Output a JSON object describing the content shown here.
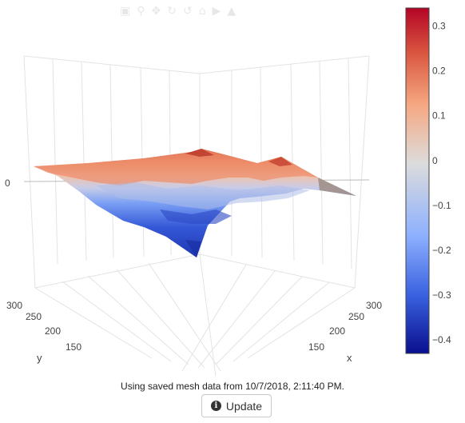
{
  "chart_data": {
    "type": "surface",
    "title": "",
    "x_axis": {
      "label": "x",
      "ticks": [
        "150",
        "200",
        "250",
        "300"
      ]
    },
    "y_axis": {
      "label": "y",
      "ticks": [
        "150",
        "200",
        "250",
        "300"
      ]
    },
    "z_axis": {
      "label": "",
      "ticks": [
        "0"
      ]
    },
    "colorbar": {
      "ticks": [
        "0.3",
        "0.2",
        "0.1",
        "0",
        "−0.1",
        "−0.2",
        "−0.3",
        "−0.4"
      ],
      "values": [
        0.3,
        0.2,
        0.1,
        0,
        -0.1,
        -0.2,
        -0.3,
        -0.4
      ],
      "range": [
        -0.43,
        0.34
      ],
      "colorscale": [
        "#0a0f8e",
        "#3a62e0",
        "#8db0fe",
        "#dcdcdc",
        "#f6a882",
        "#d9563f",
        "#b40426"
      ]
    },
    "surface_range": [
      -0.43,
      0.34
    ],
    "grid": true
  },
  "modebar_icons": [
    "camera-icon",
    "zoom-icon",
    "pan-icon",
    "orbit-icon",
    "turntable-icon",
    "reset-icon",
    "hover-icon",
    "plotly-logo-icon"
  ],
  "status": {
    "text": "Using saved mesh data from 10/7/2018, 2:11:40 PM."
  },
  "update_button": {
    "label": "Update",
    "icon": "info-icon"
  }
}
